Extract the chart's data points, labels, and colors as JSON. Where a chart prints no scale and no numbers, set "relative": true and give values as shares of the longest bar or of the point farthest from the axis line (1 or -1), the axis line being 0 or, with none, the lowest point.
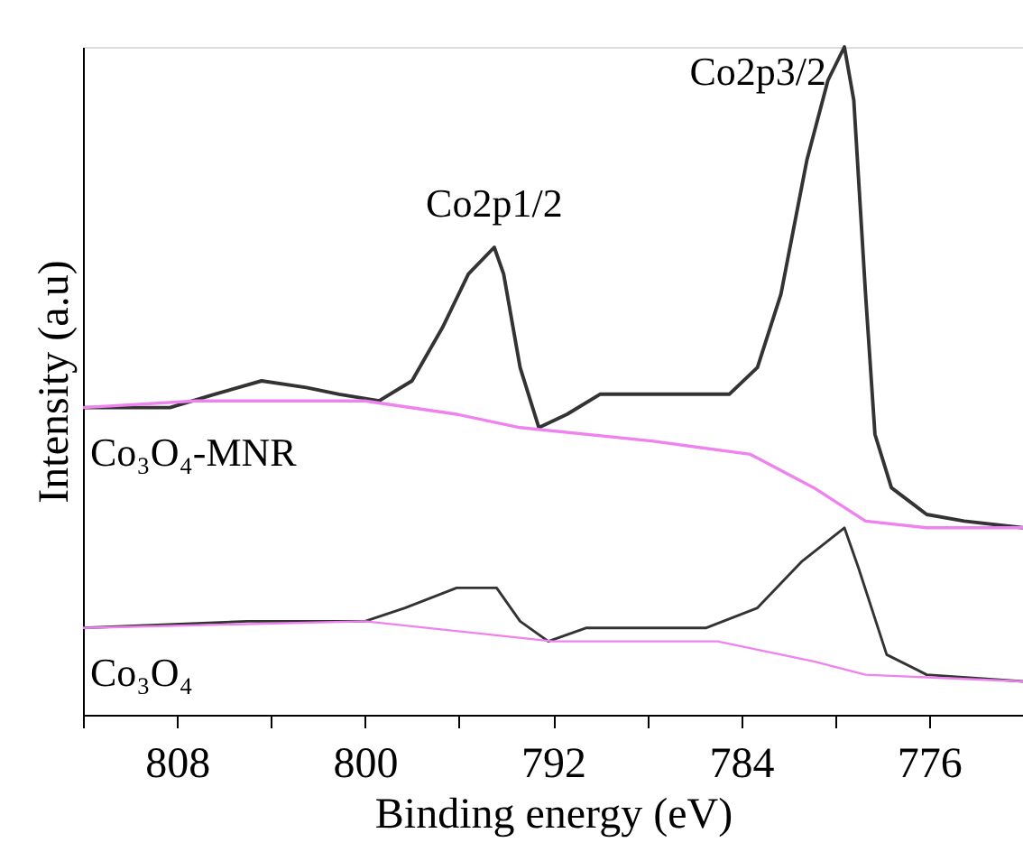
{
  "chart_data": {
    "type": "line",
    "relative": true,
    "xlabel": "Binding energy (eV)",
    "ylabel": "Intensity (a.u)",
    "xlim": [
      812,
      772
    ],
    "xticks": [
      {
        "value": 812,
        "label": null
      },
      808,
      {
        "value": 804,
        "label": null
      },
      800,
      {
        "value": 796,
        "label": null
      },
      792,
      {
        "value": 788,
        "label": null
      },
      784,
      {
        "value": 780,
        "label": null
      },
      776
    ],
    "grid": false,
    "annotations": [
      "Co2p1/2",
      "Co2p3/2"
    ],
    "series": [
      {
        "name": "Co₃O₄-MNR",
        "color": "#333333",
        "x": [
          812,
          808.3,
          806.4,
          804.4,
          802.5,
          801.1,
          799.4,
          798.0,
          796.7,
          795.6,
          794.5,
          794.1,
          793.4,
          792.6,
          791.4,
          790.0,
          787.8,
          784.5,
          783.3,
          782.3,
          781.2,
          780.3,
          779.6,
          779.2,
          778.7,
          778.3,
          777.6,
          776.1,
          774.5,
          772
        ],
        "values": [
          0.46,
          0.46,
          0.48,
          0.5,
          0.49,
          0.48,
          0.47,
          0.5,
          0.58,
          0.66,
          0.7,
          0.66,
          0.52,
          0.43,
          0.45,
          0.48,
          0.48,
          0.48,
          0.52,
          0.63,
          0.83,
          0.95,
          1.0,
          0.92,
          0.63,
          0.42,
          0.34,
          0.3,
          0.29,
          0.28
        ]
      },
      {
        "color": "#ee82ee",
        "x": [
          812,
          807.2,
          800.0,
          796.1,
          793.4,
          787.8,
          783.6,
          780.9,
          778.7,
          776.1,
          772
        ],
        "values": [
          0.46,
          0.47,
          0.47,
          0.45,
          0.43,
          0.41,
          0.39,
          0.34,
          0.29,
          0.28,
          0.28
        ]
      },
      {
        "name": "Co₃O₄",
        "color": "#333333",
        "x": [
          812,
          805.0,
          800.0,
          798.3,
          796.1,
          794.4,
          793.4,
          792.2,
          790.6,
          785.5,
          783.3,
          781.4,
          779.6,
          779.0,
          777.8,
          776.1,
          772
        ],
        "values": [
          0.13,
          0.14,
          0.14,
          0.16,
          0.19,
          0.19,
          0.14,
          0.11,
          0.13,
          0.13,
          0.16,
          0.23,
          0.28,
          0.22,
          0.09,
          0.06,
          0.05
        ]
      },
      {
        "color": "#ee82ee",
        "x": [
          812,
          800.0,
          792.0,
          785.0,
          780.9,
          778.7,
          772
        ],
        "values": [
          0.13,
          0.14,
          0.11,
          0.11,
          0.08,
          0.06,
          0.05
        ]
      }
    ]
  }
}
